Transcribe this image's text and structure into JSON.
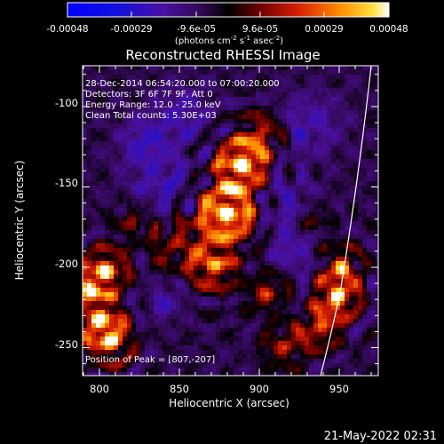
{
  "colorbar": {
    "ticks": [
      "-0.00048",
      "-0.00029",
      "-9.6e-05",
      "9.6e-05",
      "0.00029",
      "0.00048"
    ],
    "units_prefix": "(photons cm",
    "units_exp1": "-2",
    "units_mid": " s",
    "units_exp2": "-1",
    "units_mid2": " asec",
    "units_exp3": "-2",
    "units_suffix": ")"
  },
  "image": {
    "title": "Reconstructed RHESSI Image",
    "info_lines": [
      "28-Dec-2014 06:54:20.000 to 07:00:20.000",
      "Detectors: 3F 6F 7F 9F, Att 0",
      "Energy Range: 12.0 - 25.0 keV",
      "Clean     Total counts: 5.30E+03"
    ],
    "peak_label": "Position of Peak = [807,-207]"
  },
  "axes": {
    "xlabel": "Heliocentric X (arcsec)",
    "ylabel": "Heliocentric Y (arcsec)",
    "xticks": [
      "800",
      "850",
      "900",
      "950"
    ],
    "yticks": [
      "-100",
      "-150",
      "-200",
      "-250"
    ]
  },
  "footer": {
    "timestamp": "21-May-2022 02:31"
  },
  "colors": {
    "background": "#000000",
    "limb": "#ffffff"
  }
}
